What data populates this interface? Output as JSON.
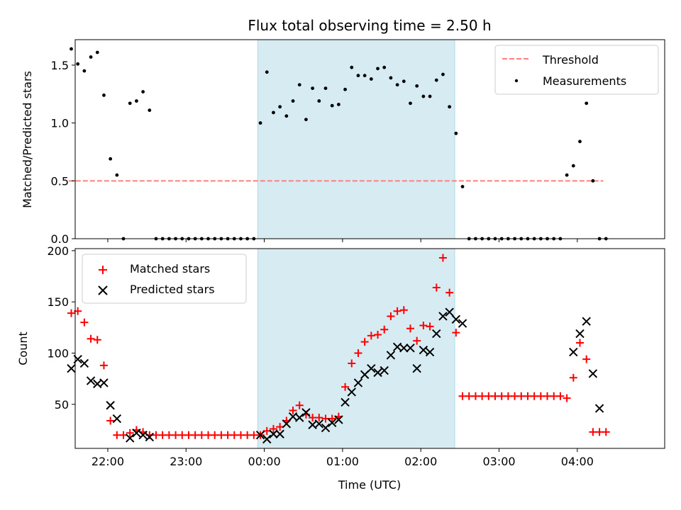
{
  "chart_data": [
    {
      "type": "scatter",
      "title": "Flux total observing time = 2.50 h",
      "ylabel": "Matched/Predicted stars",
      "xlabel": "",
      "xlim": [
        "21:35",
        "05:07"
      ],
      "ylim": [
        0,
        1.72
      ],
      "yticks": [
        "0.0",
        "0.5",
        "1.0",
        "1.5"
      ],
      "shaded_span": [
        "23:55",
        "02:26"
      ],
      "legend_position": "upper right",
      "threshold": {
        "name": "Threshold",
        "value": 0.5,
        "x_range": [
          "21:30",
          "04:20"
        ],
        "color": "#ff7f7f"
      },
      "series": [
        {
          "name": "Measurements",
          "color": "#000000",
          "marker": "dot",
          "x": [
            "21:32",
            "21:37",
            "21:42",
            "21:47",
            "21:52",
            "21:57",
            "22:02",
            "22:07",
            "22:12",
            "22:17",
            "22:22",
            "22:27",
            "22:32",
            "22:37",
            "22:42",
            "22:47",
            "22:52",
            "22:57",
            "23:02",
            "23:07",
            "23:12",
            "23:17",
            "23:22",
            "23:27",
            "23:32",
            "23:37",
            "23:42",
            "23:47",
            "23:52",
            "23:57",
            "00:02",
            "00:07",
            "00:12",
            "00:17",
            "00:22",
            "00:27",
            "00:32",
            "00:37",
            "00:42",
            "00:47",
            "00:52",
            "00:57",
            "01:02",
            "01:07",
            "01:12",
            "01:17",
            "01:22",
            "01:27",
            "01:32",
            "01:37",
            "01:42",
            "01:47",
            "01:52",
            "01:57",
            "02:02",
            "02:07",
            "02:12",
            "02:17",
            "02:22",
            "02:27",
            "02:32",
            "02:37",
            "02:42",
            "02:47",
            "02:52",
            "02:57",
            "03:02",
            "03:07",
            "03:12",
            "03:17",
            "03:22",
            "03:27",
            "03:32",
            "03:37",
            "03:42",
            "03:47",
            "03:52",
            "03:57",
            "04:02",
            "04:07",
            "04:12",
            "04:17",
            "04:22"
          ],
          "y": [
            1.64,
            1.51,
            1.45,
            1.57,
            1.61,
            1.24,
            0.69,
            0.55,
            0.0,
            1.17,
            1.19,
            1.27,
            1.11,
            0.0,
            0.0,
            0.0,
            0.0,
            0.0,
            0.0,
            0.0,
            0.0,
            0.0,
            0.0,
            0.0,
            0.0,
            0.0,
            0.0,
            0.0,
            0.0,
            1.0,
            1.44,
            1.09,
            1.14,
            1.06,
            1.19,
            1.33,
            1.03,
            1.3,
            1.19,
            1.3,
            1.15,
            1.16,
            1.29,
            1.48,
            1.41,
            1.41,
            1.38,
            1.47,
            1.48,
            1.39,
            1.33,
            1.36,
            1.17,
            1.32,
            1.23,
            1.23,
            1.37,
            1.42,
            1.14,
            0.91,
            0.45,
            0.0,
            0.0,
            0.0,
            0.0,
            0.0,
            0.0,
            0.0,
            0.0,
            0.0,
            0.0,
            0.0,
            0.0,
            0.0,
            0.0,
            0.0,
            0.55,
            0.63,
            0.84,
            1.17,
            0.5,
            0.0,
            0.0
          ]
        }
      ]
    },
    {
      "type": "scatter",
      "title": "",
      "xlabel": "Time (UTC)",
      "ylabel": "Count",
      "xlim": [
        "21:35",
        "05:07"
      ],
      "ylim": [
        7,
        202
      ],
      "yticks": [
        "50",
        "100",
        "150",
        "200"
      ],
      "xticks": [
        "22:00",
        "23:00",
        "00:00",
        "01:00",
        "02:00",
        "03:00",
        "04:00"
      ],
      "shaded_span": [
        "23:55",
        "02:26"
      ],
      "legend_position": "upper left",
      "series": [
        {
          "name": "Matched stars",
          "color": "#ff0000",
          "marker": "plus",
          "x": [
            "21:32",
            "21:37",
            "21:42",
            "21:47",
            "21:52",
            "21:57",
            "22:02",
            "22:07",
            "22:12",
            "22:17",
            "22:22",
            "22:27",
            "22:32",
            "22:37",
            "22:42",
            "22:47",
            "22:52",
            "22:57",
            "23:02",
            "23:07",
            "23:12",
            "23:17",
            "23:22",
            "23:27",
            "23:32",
            "23:37",
            "23:42",
            "23:47",
            "23:52",
            "23:57",
            "00:02",
            "00:07",
            "00:12",
            "00:17",
            "00:22",
            "00:27",
            "00:32",
            "00:37",
            "00:42",
            "00:47",
            "00:52",
            "00:57",
            "01:02",
            "01:07",
            "01:12",
            "01:17",
            "01:22",
            "01:27",
            "01:32",
            "01:37",
            "01:42",
            "01:47",
            "01:52",
            "01:57",
            "02:02",
            "02:07",
            "02:12",
            "02:17",
            "02:22",
            "02:27",
            "02:32",
            "02:37",
            "02:42",
            "02:47",
            "02:52",
            "02:57",
            "03:02",
            "03:07",
            "03:12",
            "03:17",
            "03:22",
            "03:27",
            "03:32",
            "03:37",
            "03:42",
            "03:47",
            "03:52",
            "03:57",
            "04:02",
            "04:07",
            "04:12",
            "04:17",
            "04:22"
          ],
          "y": [
            139,
            141,
            130,
            114,
            113,
            88,
            34,
            20,
            20,
            22,
            25,
            23,
            20,
            20,
            20,
            20,
            20,
            20,
            20,
            20,
            20,
            20,
            20,
            20,
            20,
            20,
            20,
            20,
            20,
            20,
            24,
            26,
            28,
            34,
            44,
            49,
            40,
            37,
            37,
            36,
            36,
            38,
            67,
            90,
            100,
            111,
            117,
            118,
            123,
            136,
            141,
            142,
            124,
            112,
            127,
            126,
            164,
            193,
            159,
            120,
            58,
            58,
            58,
            58,
            58,
            58,
            58,
            58,
            58,
            58,
            58,
            58,
            58,
            58,
            58,
            58,
            56,
            76,
            110,
            94,
            23,
            23,
            23
          ]
        },
        {
          "name": "Predicted stars",
          "color": "#000000",
          "marker": "x",
          "x": [
            "21:32",
            "21:37",
            "21:42",
            "21:47",
            "21:52",
            "21:57",
            "22:02",
            "22:07",
            "22:17",
            "22:22",
            "22:27",
            "22:32",
            "23:57",
            "00:02",
            "00:07",
            "00:12",
            "00:17",
            "00:22",
            "00:27",
            "00:32",
            "00:37",
            "00:42",
            "00:47",
            "00:52",
            "00:57",
            "01:02",
            "01:07",
            "01:12",
            "01:17",
            "01:22",
            "01:27",
            "01:32",
            "01:37",
            "01:42",
            "01:47",
            "01:52",
            "01:57",
            "02:02",
            "02:07",
            "02:12",
            "02:17",
            "02:22",
            "02:27",
            "02:32",
            "03:57",
            "04:02",
            "04:07",
            "04:12",
            "04:17"
          ],
          "y": [
            85,
            94,
            90,
            73,
            70,
            71,
            49,
            36,
            17,
            22,
            20,
            18,
            20,
            16,
            21,
            21,
            31,
            38,
            37,
            42,
            30,
            31,
            27,
            32,
            35,
            52,
            62,
            71,
            79,
            85,
            81,
            83,
            98,
            106,
            105,
            105,
            85,
            103,
            101,
            119,
            136,
            140,
            133,
            129,
            101,
            119,
            131,
            80,
            46
          ]
        }
      ]
    }
  ]
}
